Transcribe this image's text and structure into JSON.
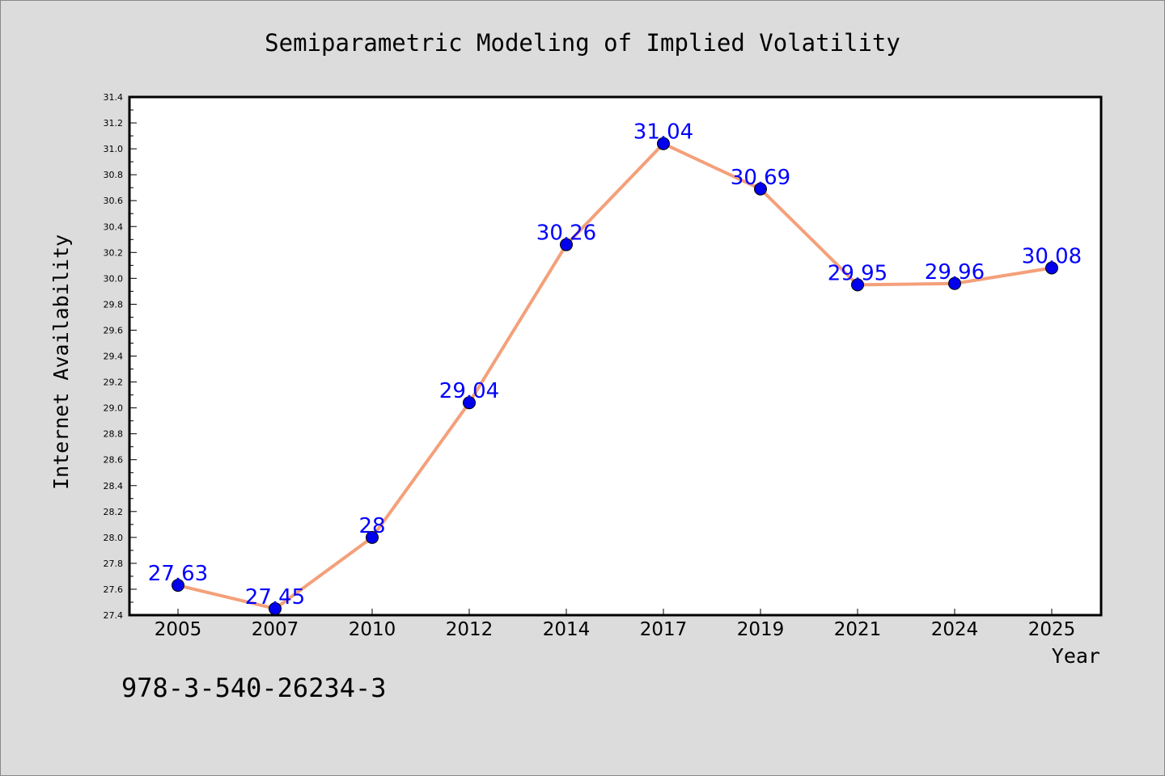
{
  "chart_data": {
    "type": "line",
    "title": "Semiparametric Modeling of Implied Volatility",
    "xlabel": "Year",
    "ylabel": "Internet Availability",
    "categories": [
      "2005",
      "2007",
      "2010",
      "2012",
      "2014",
      "2017",
      "2019",
      "2021",
      "2024",
      "2025"
    ],
    "series": [
      {
        "values": [
          27.63,
          27.45,
          28,
          29.04,
          30.26,
          31.04,
          30.69,
          29.95,
          29.96,
          30.08
        ],
        "labels": [
          "27.63",
          "27.45",
          "28",
          "29.04",
          "30.26",
          "31.04",
          "30.69",
          "29.95",
          "29.96",
          "30.08"
        ]
      }
    ],
    "ylim": [
      27.4,
      31.4
    ],
    "yticks": [
      "27.4",
      "27.6",
      "27.8",
      "28.0",
      "28.2",
      "28.4",
      "28.6",
      "28.8",
      "29.0",
      "29.2",
      "29.4",
      "29.6",
      "29.8",
      "30.0",
      "30.2",
      "30.4",
      "30.6",
      "30.8",
      "31.0",
      "31.2",
      "31.4"
    ],
    "grid": false,
    "line_color": "#f4a07a",
    "marker_color": "#0000ee",
    "label_color": "#0000ff"
  },
  "footer": {
    "isbn": "978-3-540-26234-3"
  }
}
